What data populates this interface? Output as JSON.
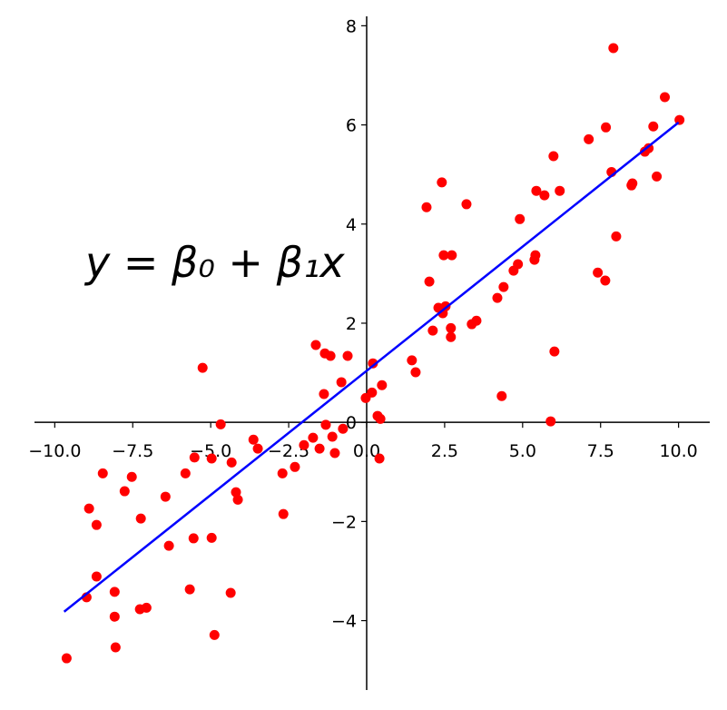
{
  "chart_data": {
    "type": "scatter",
    "annotation": "y = β₀ + β₁x",
    "xlim": [
      -10.65,
      11.0
    ],
    "ylim": [
      -5.4,
      8.19
    ],
    "xticks": [
      {
        "value": -10,
        "label": "−10.0"
      },
      {
        "value": -7.5,
        "label": "−7.5"
      },
      {
        "value": -5,
        "label": "−5.0"
      },
      {
        "value": -2.5,
        "label": "−2.5"
      },
      {
        "value": 0,
        "label": "0.0"
      },
      {
        "value": 2.5,
        "label": "2.5"
      },
      {
        "value": 5,
        "label": "5.0"
      },
      {
        "value": 7.5,
        "label": "7.5"
      },
      {
        "value": 10,
        "label": "10.0"
      }
    ],
    "yticks": [
      {
        "value": -4,
        "label": "−4"
      },
      {
        "value": -2,
        "label": "−2"
      },
      0,
      2,
      4,
      6,
      8
    ],
    "grid": false,
    "points": {
      "color": "#ff0000",
      "x": [
        -9.62,
        -8.98,
        -8.9,
        -8.66,
        -8.66,
        -8.46,
        -8.08,
        -8.08,
        -8.05,
        -7.76,
        -7.53,
        -7.24,
        -7.27,
        -7.06,
        -6.45,
        -6.34,
        -5.81,
        -5.67,
        -5.55,
        -5.52,
        -5.26,
        -4.97,
        -4.97,
        -4.88,
        -4.68,
        -4.36,
        -4.33,
        -4.19,
        -4.13,
        -3.63,
        -3.49,
        -2.7,
        -2.67,
        -2.3,
        -2.01,
        -1.72,
        -1.63,
        -1.51,
        -1.37,
        -1.34,
        -1.31,
        -1.16,
        -1.1,
        -1.02,
        -0.81,
        -0.76,
        -0.61,
        -0.03,
        0.17,
        0.2,
        0.35,
        0.41,
        0.44,
        0.49,
        1.45,
        1.57,
        1.92,
        2.01,
        2.12,
        2.3,
        2.41,
        2.44,
        2.47,
        2.53,
        2.7,
        2.7,
        2.73,
        3.2,
        3.37,
        3.52,
        4.19,
        4.33,
        4.39,
        4.71,
        4.85,
        4.91,
        5.41,
        5.38,
        5.44,
        5.7,
        5.9,
        5.99,
        6.02,
        6.19,
        7.12,
        7.41,
        7.65,
        7.67,
        7.85,
        7.91,
        8.0,
        8.49,
        8.52,
        8.92,
        9.04,
        9.19,
        9.3,
        9.56,
        10.03
      ],
      "y": [
        -4.76,
        -3.53,
        -1.74,
        -2.07,
        -3.11,
        -1.03,
        -3.42,
        -3.92,
        -4.54,
        -1.39,
        -1.1,
        -1.94,
        -3.77,
        -3.74,
        -1.5,
        -2.49,
        -1.03,
        -3.37,
        -2.34,
        -0.71,
        1.1,
        -0.73,
        -2.33,
        -4.29,
        -0.04,
        -3.44,
        -0.81,
        -1.41,
        -1.56,
        -0.35,
        -0.53,
        -1.03,
        -1.85,
        -0.9,
        -0.46,
        -0.31,
        1.56,
        -0.53,
        0.57,
        1.39,
        -0.05,
        1.34,
        -0.29,
        -0.62,
        0.81,
        -0.13,
        1.34,
        0.49,
        0.6,
        1.19,
        0.13,
        -0.73,
        0.07,
        0.75,
        1.25,
        1.01,
        4.34,
        2.84,
        1.85,
        2.31,
        4.84,
        2.2,
        3.37,
        2.34,
        1.9,
        1.72,
        3.37,
        4.4,
        1.98,
        2.05,
        2.51,
        0.53,
        2.73,
        3.06,
        3.19,
        4.1,
        3.37,
        3.28,
        4.67,
        4.58,
        0.02,
        5.37,
        1.43,
        4.67,
        5.71,
        3.02,
        2.86,
        5.95,
        5.05,
        7.55,
        3.75,
        4.78,
        4.82,
        5.46,
        5.53,
        5.97,
        4.96,
        6.56,
        6.1
      ]
    },
    "line": {
      "color": "#0000ff",
      "x": [
        -9.7,
        10.0
      ],
      "y": [
        -3.82,
        6.05
      ]
    }
  }
}
